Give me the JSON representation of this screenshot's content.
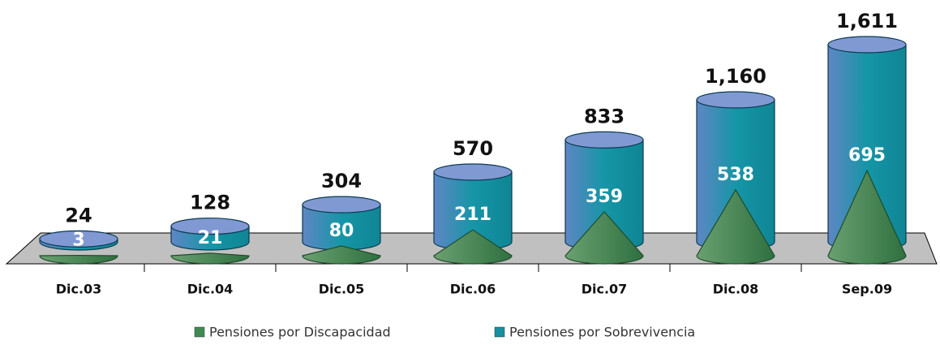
{
  "chart_data": {
    "type": "cylinder-cone",
    "categories": [
      "Dic.03",
      "Dic.04",
      "Dic.05",
      "Dic.06",
      "Dic.07",
      "Dic.08",
      "Sep.09"
    ],
    "series": [
      {
        "name": "Pensiones por Discapacidad",
        "color": "#3f8a52",
        "shape": "cone",
        "values": [
          3,
          21,
          80,
          211,
          359,
          538,
          695
        ]
      },
      {
        "name": "Pensiones por Sobrevivencia",
        "color": "#17909f",
        "shape": "cylinder",
        "values": [
          24,
          128,
          304,
          570,
          833,
          1160,
          1611
        ],
        "value_labels": [
          "24",
          "128",
          "304",
          "570",
          "833",
          "1,160",
          "1,611"
        ]
      }
    ],
    "legend": "bottom"
  }
}
